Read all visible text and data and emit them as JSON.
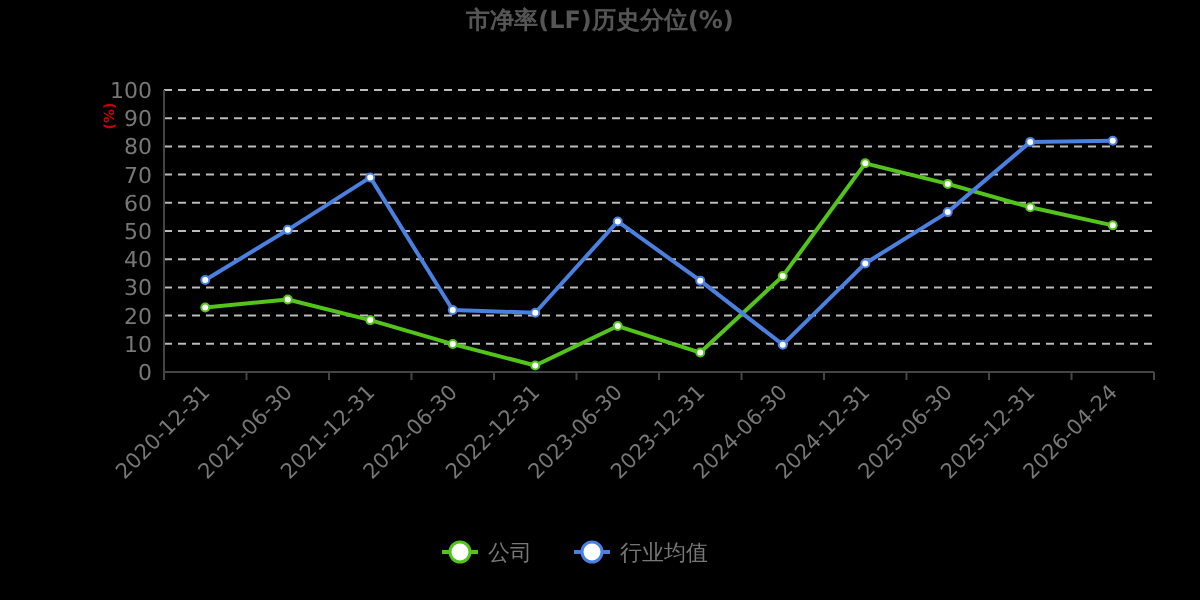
{
  "chart_data": {
    "type": "line",
    "title": "市净率(LF)历史分位(%)",
    "ylabel": "(%)",
    "categories": [
      "2020-12-31",
      "2021-06-30",
      "2021-12-31",
      "2022-06-30",
      "2022-12-31",
      "2023-06-30",
      "2023-12-31",
      "2024-06-30",
      "2024-12-31",
      "2025-06-30",
      "2025-12-31",
      "2026-04-24"
    ],
    "series": [
      {
        "name": "公司",
        "color": "#52c41a",
        "values": [
          22.9,
          25.7,
          18.4,
          9.9,
          2.3,
          16.3,
          6.9,
          34,
          74,
          66.7,
          58.4,
          52
        ]
      },
      {
        "name": "行业均值",
        "color": "#4a80e0",
        "values": [
          32.6,
          50.4,
          69,
          22,
          21,
          53.4,
          32.4,
          9.7,
          38.5,
          56.7,
          81.6,
          82
        ]
      }
    ],
    "ylim": [
      0,
      100
    ],
    "yticks": [
      0,
      10,
      20,
      30,
      40,
      50,
      60,
      70,
      80,
      90,
      100
    ],
    "grid": "y",
    "legend": "bottom",
    "marker": "circle",
    "line_style": "solid"
  }
}
